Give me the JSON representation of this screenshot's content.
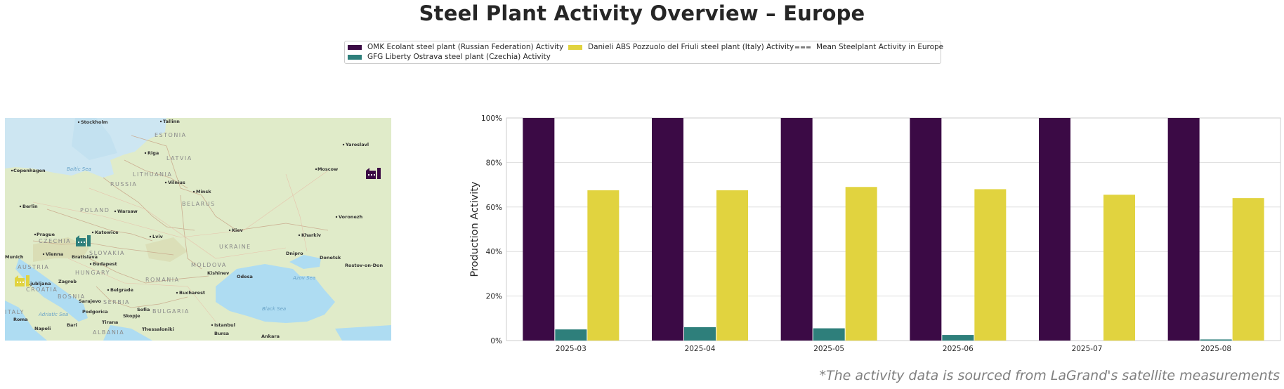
{
  "title": "Steel Plant Activity Overview – Europe",
  "footnote": "*The activity data is sourced from LaGrand's satellite measurements",
  "legend": {
    "items": [
      {
        "label": "OMK Ecolant steel plant (Russian Federation) Activity",
        "color": "#3b0a45",
        "style": "patch"
      },
      {
        "label": "GFG Liberty Ostrava steel plant (Czechia) Activity",
        "color": "#2e7f7b",
        "style": "patch"
      },
      {
        "label": "Danieli ABS Pozzuolo del Friuli steel plant (Italy) Activity",
        "color": "#e1d33f",
        "style": "patch"
      },
      {
        "label": "Mean Steelplant Activity in Europe",
        "color": "#808080",
        "style": "dashed-line"
      }
    ]
  },
  "map": {
    "cities": [
      "Stockholm",
      "Tallinn",
      "Riga",
      "Copenhagen",
      "Vilnius",
      "Minsk",
      "Moscow",
      "Yaroslavl",
      "Berlin",
      "Warsaw",
      "Prague",
      "Katowice",
      "Lviv",
      "Kiev",
      "Kharkiv",
      "Voronezh",
      "Vienna",
      "Bratislava",
      "Budapest",
      "Munich",
      "Ljubljana",
      "Zagreb",
      "Kishinev",
      "Odesa",
      "Dnipro",
      "Donetsk",
      "Rostov-on-Don",
      "Belgrade",
      "Bucharest",
      "Sarajevo",
      "Podgorica",
      "Skopje",
      "Sofia",
      "Tirana",
      "Roma",
      "Napoli",
      "Bari",
      "Thessaloniki",
      "Istanbul",
      "Bursa",
      "Ankara"
    ],
    "countries": [
      "ESTONIA",
      "LATVIA",
      "LITHUANIA",
      "RUSSIA",
      "BELARUS",
      "POLAND",
      "CZECHIA",
      "SLOVAKIA",
      "UKRAINE",
      "AUSTRIA",
      "HUNGARY",
      "MOLDOVA",
      "ROMANIA",
      "CROATIA",
      "BOSNIA",
      "SERBIA",
      "BULGARIA",
      "ALBANIA",
      "ITALY"
    ],
    "seas": [
      "Baltic Sea",
      "Black Sea",
      "Azov Sea",
      "Adriatic Sea"
    ],
    "markers": [
      {
        "name": "OMK Ecolant",
        "color": "#3b0a45",
        "icon": "factory-icon"
      },
      {
        "name": "GFG Liberty Ostrava",
        "color": "#2e7f7b",
        "icon": "factory-icon"
      },
      {
        "name": "Danieli ABS Pozzuolo del Friuli",
        "color": "#e1d33f",
        "icon": "factory-icon"
      }
    ]
  },
  "chart_data": {
    "type": "bar",
    "ylabel": "Production Activity",
    "xlabel": "",
    "categories": [
      "2025-03",
      "2025-04",
      "2025-05",
      "2025-06",
      "2025-07",
      "2025-08"
    ],
    "ylim": [
      0,
      100
    ],
    "yticks": [
      0,
      20,
      40,
      60,
      80,
      100
    ],
    "ytick_labels": [
      "0%",
      "20%",
      "40%",
      "60%",
      "80%",
      "100%"
    ],
    "grid": "horizontal",
    "legend_position": "top-center",
    "series": [
      {
        "name": "OMK Ecolant steel plant (Russian Federation) Activity",
        "color": "#3b0a45",
        "values": [
          100,
          100,
          100,
          100,
          100,
          100
        ]
      },
      {
        "name": "GFG Liberty Ostrava steel plant (Czechia) Activity",
        "color": "#2e7f7b",
        "values": [
          5,
          6,
          5.5,
          2.5,
          0,
          0.5
        ]
      },
      {
        "name": "Danieli ABS Pozzuolo del Friuli steel plant (Italy) Activity",
        "color": "#e1d33f",
        "values": [
          67.5,
          67.5,
          69,
          68,
          65.5,
          64
        ]
      }
    ]
  }
}
